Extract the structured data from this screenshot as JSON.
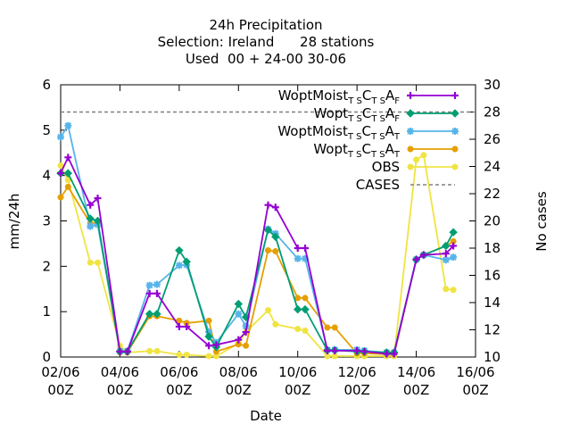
{
  "title": {
    "line1": "24h Precipitation",
    "line2": "Selection: Ireland      28 stations",
    "line3": "Used  00 + 24-00 30-06"
  },
  "chart_data": {
    "type": "line",
    "xlabel": "Date",
    "ylabel": "mm/24h",
    "y2label": "No cases",
    "ylim": [
      0,
      6
    ],
    "y2lim": [
      10,
      30
    ],
    "xlim": [
      "2015-06-02T00Z",
      "2015-06-16T00Z"
    ],
    "y_ticks": [
      "0",
      "1",
      "2",
      "3",
      "4",
      "5",
      "6"
    ],
    "y2_ticks": [
      "10",
      "12",
      "14",
      "16",
      "18",
      "20",
      "22",
      "24",
      "26",
      "28",
      "30"
    ],
    "x_ticks": [
      {
        "top": "02/06",
        "bottom": "00Z"
      },
      {
        "top": "04/06",
        "bottom": "00Z"
      },
      {
        "top": "06/06",
        "bottom": "00Z"
      },
      {
        "top": "08/06",
        "bottom": "00Z"
      },
      {
        "top": "10/06",
        "bottom": "00Z"
      },
      {
        "top": "12/06",
        "bottom": "00Z"
      },
      {
        "top": "14/06",
        "bottom": "00Z"
      },
      {
        "top": "16/06",
        "bottom": "00Z"
      }
    ],
    "x_days": [
      2.0,
      2.25,
      3.0,
      3.25,
      4.0,
      4.25,
      5.0,
      5.25,
      6.0,
      6.25,
      7.0,
      7.25,
      8.0,
      8.25,
      9.0,
      9.25,
      10.0,
      10.25,
      11.0,
      11.25,
      12.0,
      12.25,
      13.0,
      13.25,
      14.0,
      14.25,
      15.0,
      15.25
    ],
    "legend_position": "top-right",
    "grid": false,
    "series": [
      {
        "name": "WoptMoist",
        "sub1": "T S",
        "mid": "C",
        "sub2": "T S",
        "end": "A",
        "sub3": "F",
        "color": "#9400d3",
        "marker": "plus",
        "axis": "y1",
        "values": [
          4.05,
          4.4,
          3.35,
          3.5,
          0.12,
          0.12,
          1.4,
          1.4,
          0.67,
          0.67,
          0.25,
          0.27,
          0.38,
          0.55,
          3.35,
          3.3,
          2.4,
          2.4,
          0.14,
          0.14,
          0.14,
          0.12,
          0.07,
          0.07,
          2.15,
          2.25,
          2.28,
          2.45
        ]
      },
      {
        "name": "Wopt",
        "sub1": "T S",
        "mid": "C",
        "sub2": "T S",
        "end": "A",
        "sub3": "F",
        "color": "#009e73",
        "marker": "diamond",
        "axis": "y1",
        "values": [
          4.05,
          4.05,
          3.05,
          3.0,
          0.12,
          0.12,
          0.95,
          0.95,
          2.35,
          2.1,
          0.45,
          0.22,
          1.17,
          0.88,
          2.8,
          2.65,
          1.05,
          1.05,
          0.15,
          0.15,
          0.12,
          0.12,
          0.1,
          0.1,
          2.15,
          2.25,
          2.45,
          2.75
        ]
      },
      {
        "name": "WoptMoist",
        "sub1": "T S",
        "mid": "C",
        "sub2": "T S",
        "end": "A",
        "sub3": "T",
        "color": "#56b4e9",
        "marker": "star",
        "axis": "y1",
        "values": [
          4.85,
          5.1,
          2.88,
          2.92,
          0.13,
          0.13,
          1.58,
          1.6,
          2.02,
          2.03,
          0.55,
          0.32,
          0.95,
          0.68,
          2.82,
          2.72,
          2.17,
          2.17,
          0.16,
          0.16,
          0.16,
          0.14,
          0.1,
          0.1,
          2.15,
          2.25,
          2.14,
          2.2
        ]
      },
      {
        "name": "Wopt",
        "sub1": "T S",
        "mid": "C",
        "sub2": "T S",
        "end": "A",
        "sub3": "T",
        "color": "#e69f00",
        "marker": "dot",
        "axis": "y1",
        "values": [
          3.52,
          3.75,
          2.95,
          2.95,
          0.1,
          0.1,
          0.9,
          0.9,
          0.8,
          0.75,
          0.8,
          0.12,
          0.28,
          0.25,
          2.35,
          2.33,
          1.3,
          1.3,
          0.65,
          0.65,
          0.08,
          0.08,
          0.06,
          0.06,
          2.15,
          2.25,
          2.45,
          2.55
        ]
      },
      {
        "name": "OBS",
        "color": "#f0e442",
        "marker": "dot",
        "axis": "y1",
        "values": [
          4.22,
          3.9,
          2.08,
          2.08,
          0.25,
          0.1,
          0.13,
          0.13,
          0.05,
          0.05,
          0.02,
          0.02,
          0.3,
          0.55,
          1.03,
          0.72,
          0.62,
          0.58,
          0.02,
          0.02,
          0.02,
          0.02,
          0.02,
          0.02,
          4.35,
          4.45,
          1.5,
          1.48
        ]
      },
      {
        "name": "CASES",
        "color": "#808080",
        "marker": "none",
        "dash": true,
        "axis": "y2",
        "values": [
          28,
          28,
          28,
          28,
          28,
          28,
          28,
          28,
          28,
          28,
          28,
          28,
          28,
          28,
          28,
          28,
          28,
          28,
          28,
          28,
          28,
          28,
          28,
          28,
          28,
          28,
          28,
          28
        ]
      }
    ]
  }
}
